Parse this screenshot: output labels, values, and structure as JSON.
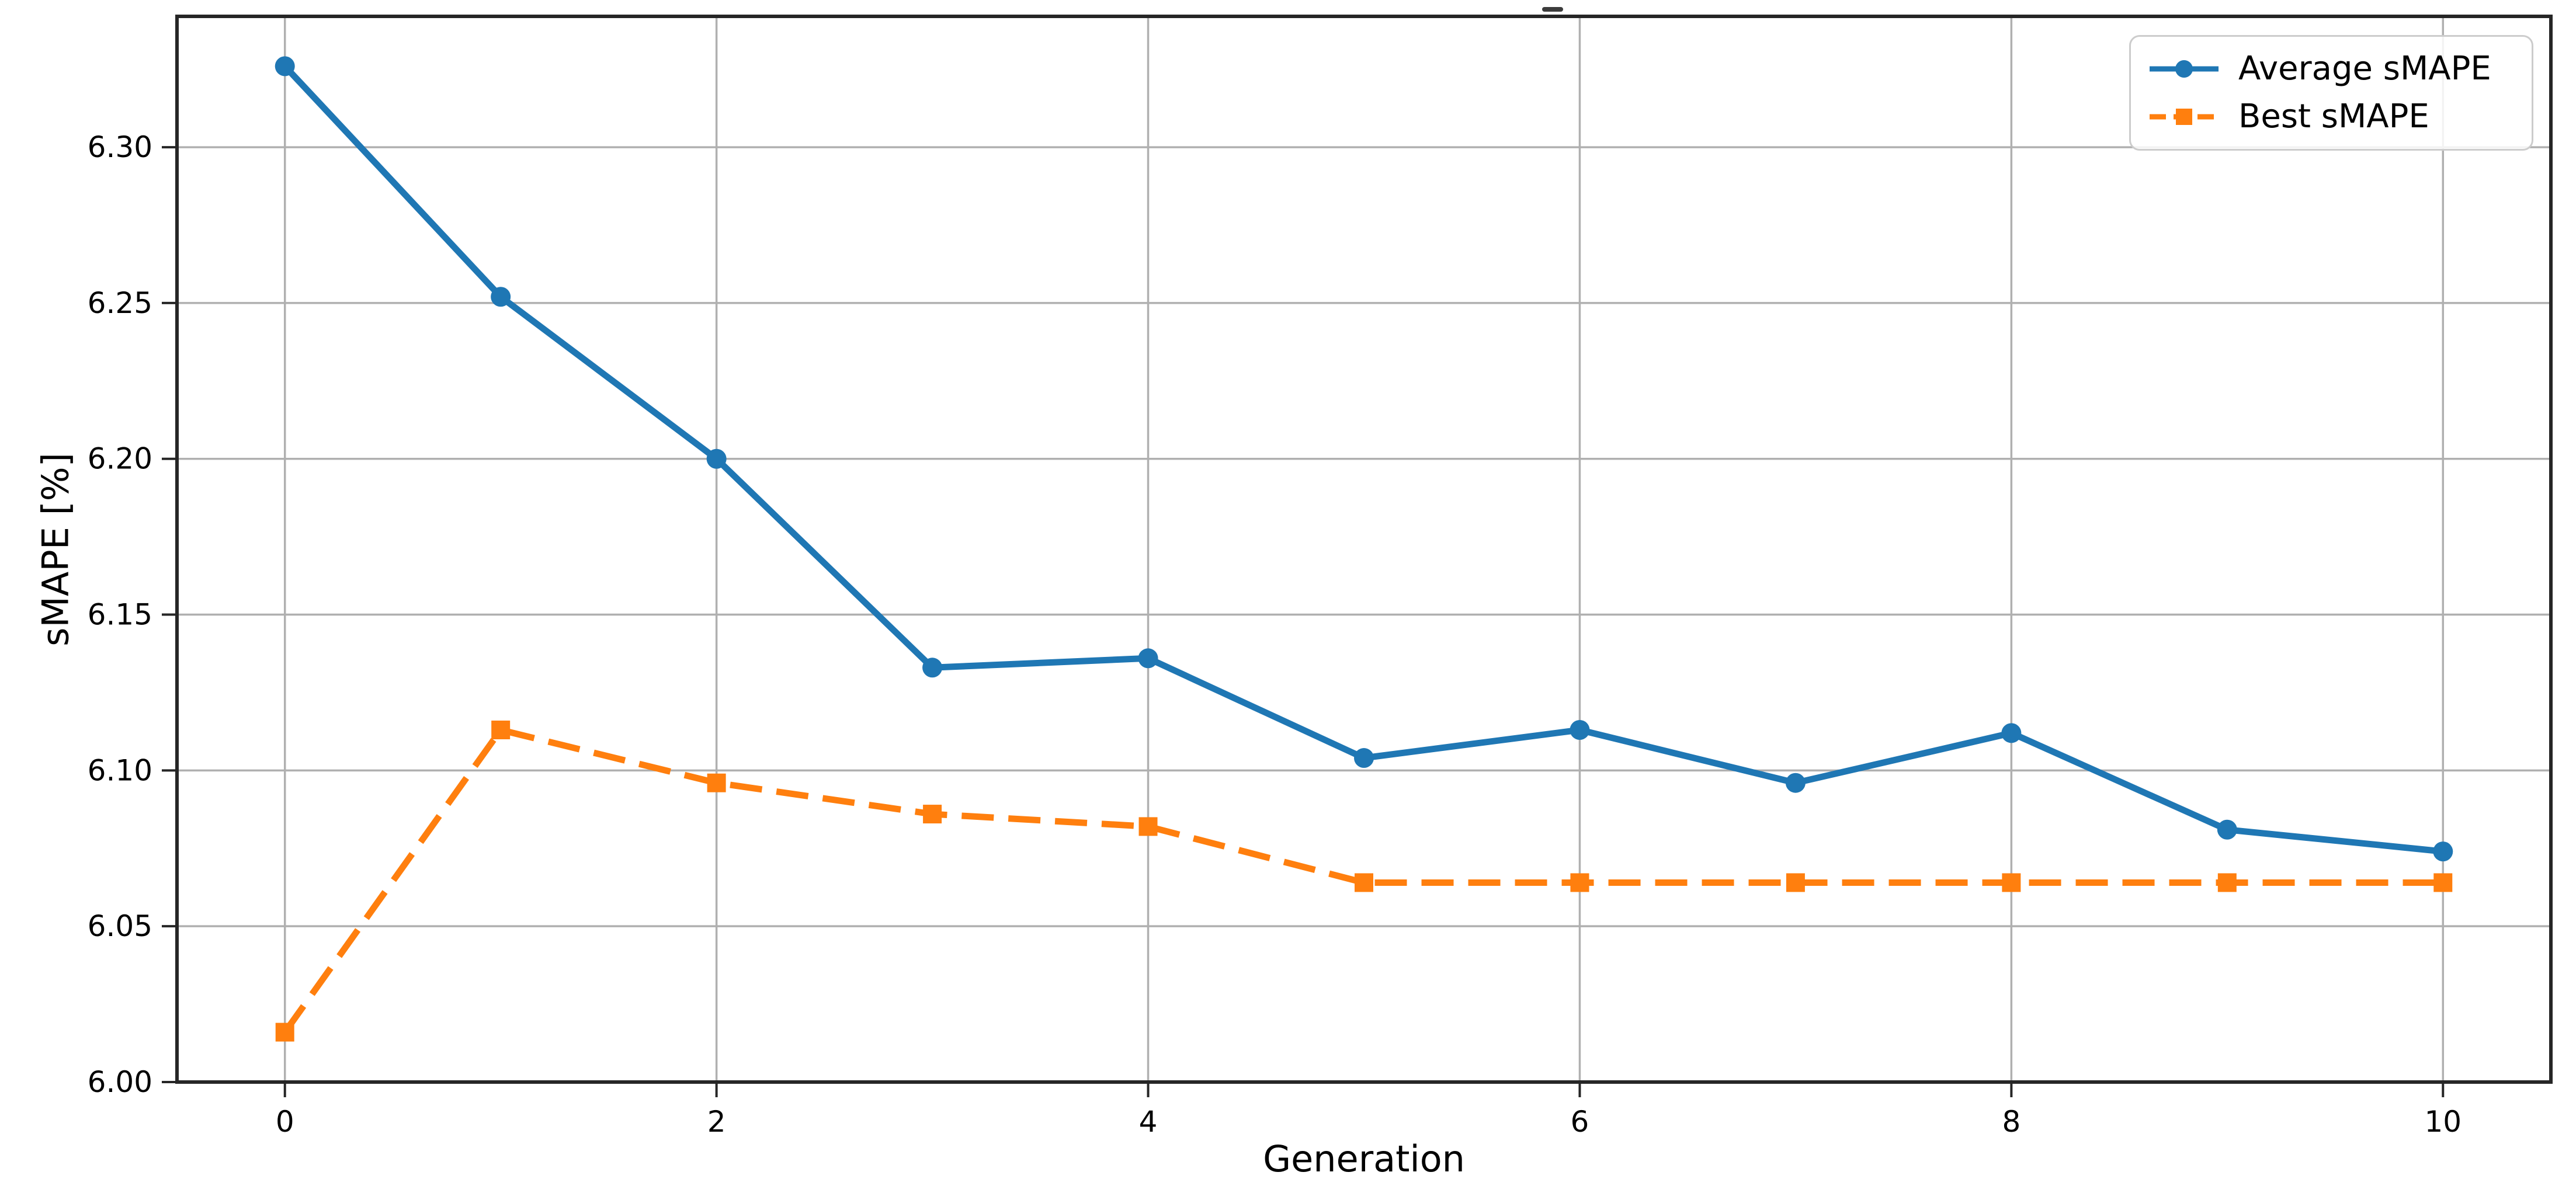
{
  "chart_data": {
    "type": "line",
    "title": "",
    "xlabel": "Generation",
    "ylabel": "sMAPE [%]",
    "x": [
      0,
      1,
      2,
      3,
      4,
      5,
      6,
      7,
      8,
      9,
      10
    ],
    "series": [
      {
        "name": "Average sMAPE",
        "color": "#1f77b4",
        "line_style": "solid",
        "marker": "circle",
        "values": [
          6.326,
          6.252,
          6.2,
          6.133,
          6.136,
          6.104,
          6.113,
          6.096,
          6.112,
          6.081,
          6.074
        ]
      },
      {
        "name": "Best sMAPE",
        "color": "#ff7f0e",
        "line_style": "dashed",
        "marker": "square",
        "values": [
          6.016,
          6.113,
          6.096,
          6.086,
          6.082,
          6.064,
          6.064,
          6.064,
          6.064,
          6.064,
          6.064
        ]
      }
    ],
    "xlim": [
      -0.5,
      10.5
    ],
    "ylim": [
      6.0,
      6.342
    ],
    "xticks": [
      0,
      2,
      4,
      6,
      8,
      10
    ],
    "xtick_labels": [
      "0",
      "2",
      "4",
      "6",
      "8",
      "10"
    ],
    "yticks": [
      6.0,
      6.05,
      6.1,
      6.15,
      6.2,
      6.25,
      6.3
    ],
    "ytick_labels": [
      "6.00",
      "6.05",
      "6.10",
      "6.15",
      "6.20",
      "6.25",
      "6.30"
    ],
    "grid": true,
    "grid_color": "#b0b0b0",
    "spine_color": "#262626",
    "legend_position": "upper right"
  }
}
